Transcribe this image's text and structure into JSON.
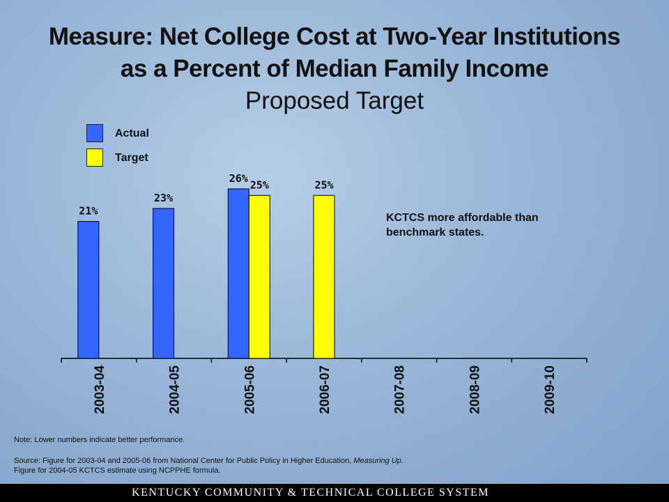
{
  "title": {
    "line1": "Measure: Net College Cost at Two-Year Institutions",
    "line2": "as a Percent of Median Family Income",
    "line3": "Proposed Target"
  },
  "legend": [
    {
      "label": "Actual",
      "color": "#3366ff"
    },
    {
      "label": "Target",
      "color": "#ffff00"
    }
  ],
  "annotation": {
    "line1": "KCTCS more affordable than",
    "line2": "benchmark states."
  },
  "note": "Note: Lower numbers indicate better performance.",
  "source": {
    "text1": "Source: Figure for 2003-04 and 2005-06 from National Center for Public Policy in Higher Education, ",
    "italic": "Measuring Up.",
    "line2": "Figure for 2004-05 KCTCS estimate using NCPPHE formula."
  },
  "footer": "KENTUCKY COMMUNITY & TECHNICAL COLLEGE SYSTEM",
  "chart_data": {
    "type": "bar",
    "categories": [
      "2003-04",
      "2004-05",
      "2005-06",
      "2006-07",
      "2007-08",
      "2008-09",
      "2009-10"
    ],
    "series": [
      {
        "name": "Actual",
        "color": "#3366ff",
        "values": [
          21,
          23,
          26,
          null,
          null,
          null,
          null
        ]
      },
      {
        "name": "Target",
        "color": "#ffff00",
        "values": [
          null,
          null,
          25,
          25,
          null,
          null,
          null
        ]
      }
    ],
    "labels": {
      "Actual": [
        "21%",
        "23%",
        "26%",
        null,
        null,
        null,
        null
      ],
      "Target": [
        null,
        null,
        "25%",
        "25%",
        null,
        null,
        null
      ]
    },
    "ylim": [
      0,
      28
    ],
    "grid": false
  }
}
